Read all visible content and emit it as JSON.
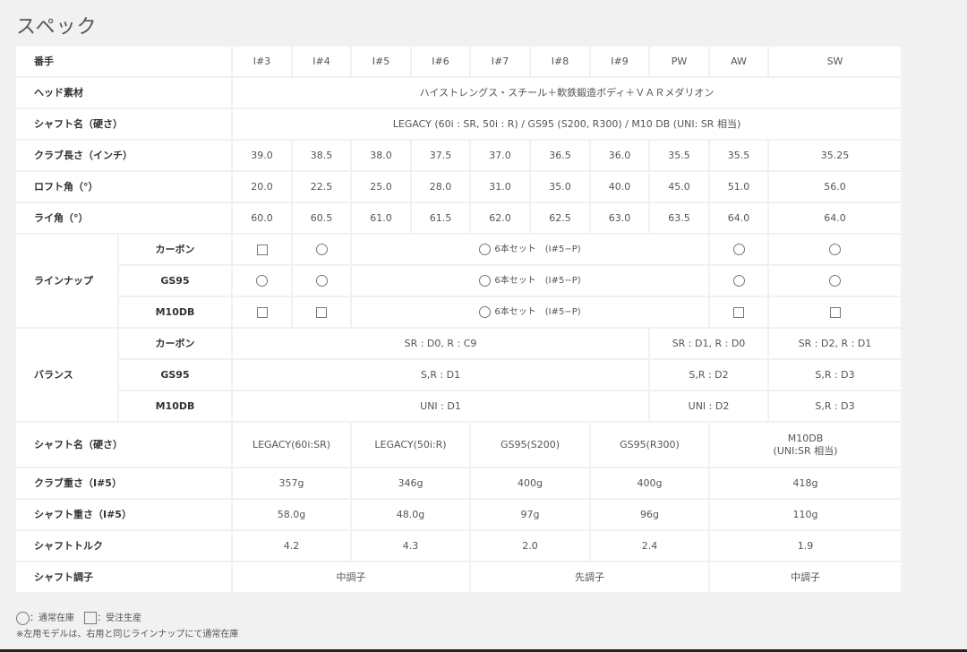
{
  "title": "スペック",
  "header": {
    "label": "番手",
    "columns": [
      "I#3",
      "I#4",
      "I#5",
      "I#6",
      "I#7",
      "I#8",
      "I#9",
      "PW",
      "AW",
      "SW"
    ]
  },
  "rows": [
    {
      "label": "ヘッド素材",
      "cells": [
        "ハイストレングス・スチール＋軟鉄鍛造ボディ＋ＶＡＲメダリオン"
      ]
    },
    {
      "label": "シャフト名（硬さ）",
      "cells": [
        "LEGACY (60i : SR, 50i : R) / GS95 (S200, R300) / M10 DB (UNI: SR 相当)"
      ]
    },
    {
      "label": "クラブ長さ（インチ）",
      "cells": [
        "39.0",
        "38.5",
        "38.0",
        "37.5",
        "37.0",
        "36.5",
        "36.0",
        "35.5",
        "35.5",
        "35.25"
      ]
    },
    {
      "label": "ロフト角（°）",
      "cells": [
        "20.0",
        "22.5",
        "25.0",
        "28.0",
        "31.0",
        "35.0",
        "40.0",
        "45.0",
        "51.0",
        "56.0"
      ]
    },
    {
      "label": "ライ角（°）",
      "cells": [
        "60.0",
        "60.5",
        "61.0",
        "61.5",
        "62.0",
        "62.5",
        "63.0",
        "63.5",
        "64.0",
        "64.0"
      ]
    }
  ],
  "lineup": {
    "label": "ラインナップ",
    "set_label": "6本セット　(I#5−P)",
    "rows": [
      {
        "sublabel": "カーボン",
        "icons": [
          "square",
          "circle",
          "circle",
          "circle",
          "circle"
        ]
      },
      {
        "sublabel": "GS95",
        "icons": [
          "circle",
          "circle",
          "circle",
          "circle",
          "circle"
        ]
      },
      {
        "sublabel": "M10DB",
        "icons": [
          "square",
          "square",
          "circle",
          "square",
          "square"
        ]
      }
    ]
  },
  "balance": {
    "label": "バランス",
    "rows": [
      {
        "sublabel": "カーボン",
        "cells": [
          "SR : D0, R : C9",
          "SR : D1, R : D0",
          "SR : D2, R : D1"
        ]
      },
      {
        "sublabel": "GS95",
        "cells": [
          "S,R : D1",
          "S,R : D2",
          "S,R : D3"
        ]
      },
      {
        "sublabel": "M10DB",
        "cells": [
          "UNI : D1",
          "UNI : D2",
          "S,R : D3"
        ]
      }
    ]
  },
  "shaft_rows": [
    {
      "label": "シャフト名（硬さ）",
      "cells": [
        "LEGACY(60i:SR)",
        "LEGACY(50i:R)",
        "GS95(S200)",
        "GS95(R300)",
        "M10DB\n(UNI:SR 相当)"
      ]
    },
    {
      "label": "クラブ重さ（I#5）",
      "cells": [
        "357g",
        "346g",
        "400g",
        "400g",
        "418g"
      ]
    },
    {
      "label": "シャフト重さ（I#5）",
      "cells": [
        "58.0g",
        "48.0g",
        "97g",
        "96g",
        "110g"
      ]
    },
    {
      "label": "シャフトトルク",
      "cells": [
        "4.2",
        "4.3",
        "2.0",
        "2.4",
        "1.9"
      ]
    }
  ],
  "kick_row": {
    "label": "シャフト調子",
    "cells": [
      "中調子",
      "先調子",
      "中調子"
    ]
  },
  "legend": {
    "circle_label": "：通常在庫",
    "square_label": "：受注生産"
  },
  "note": "※左用モデルは、右用と同じラインナップにて通常在庫"
}
